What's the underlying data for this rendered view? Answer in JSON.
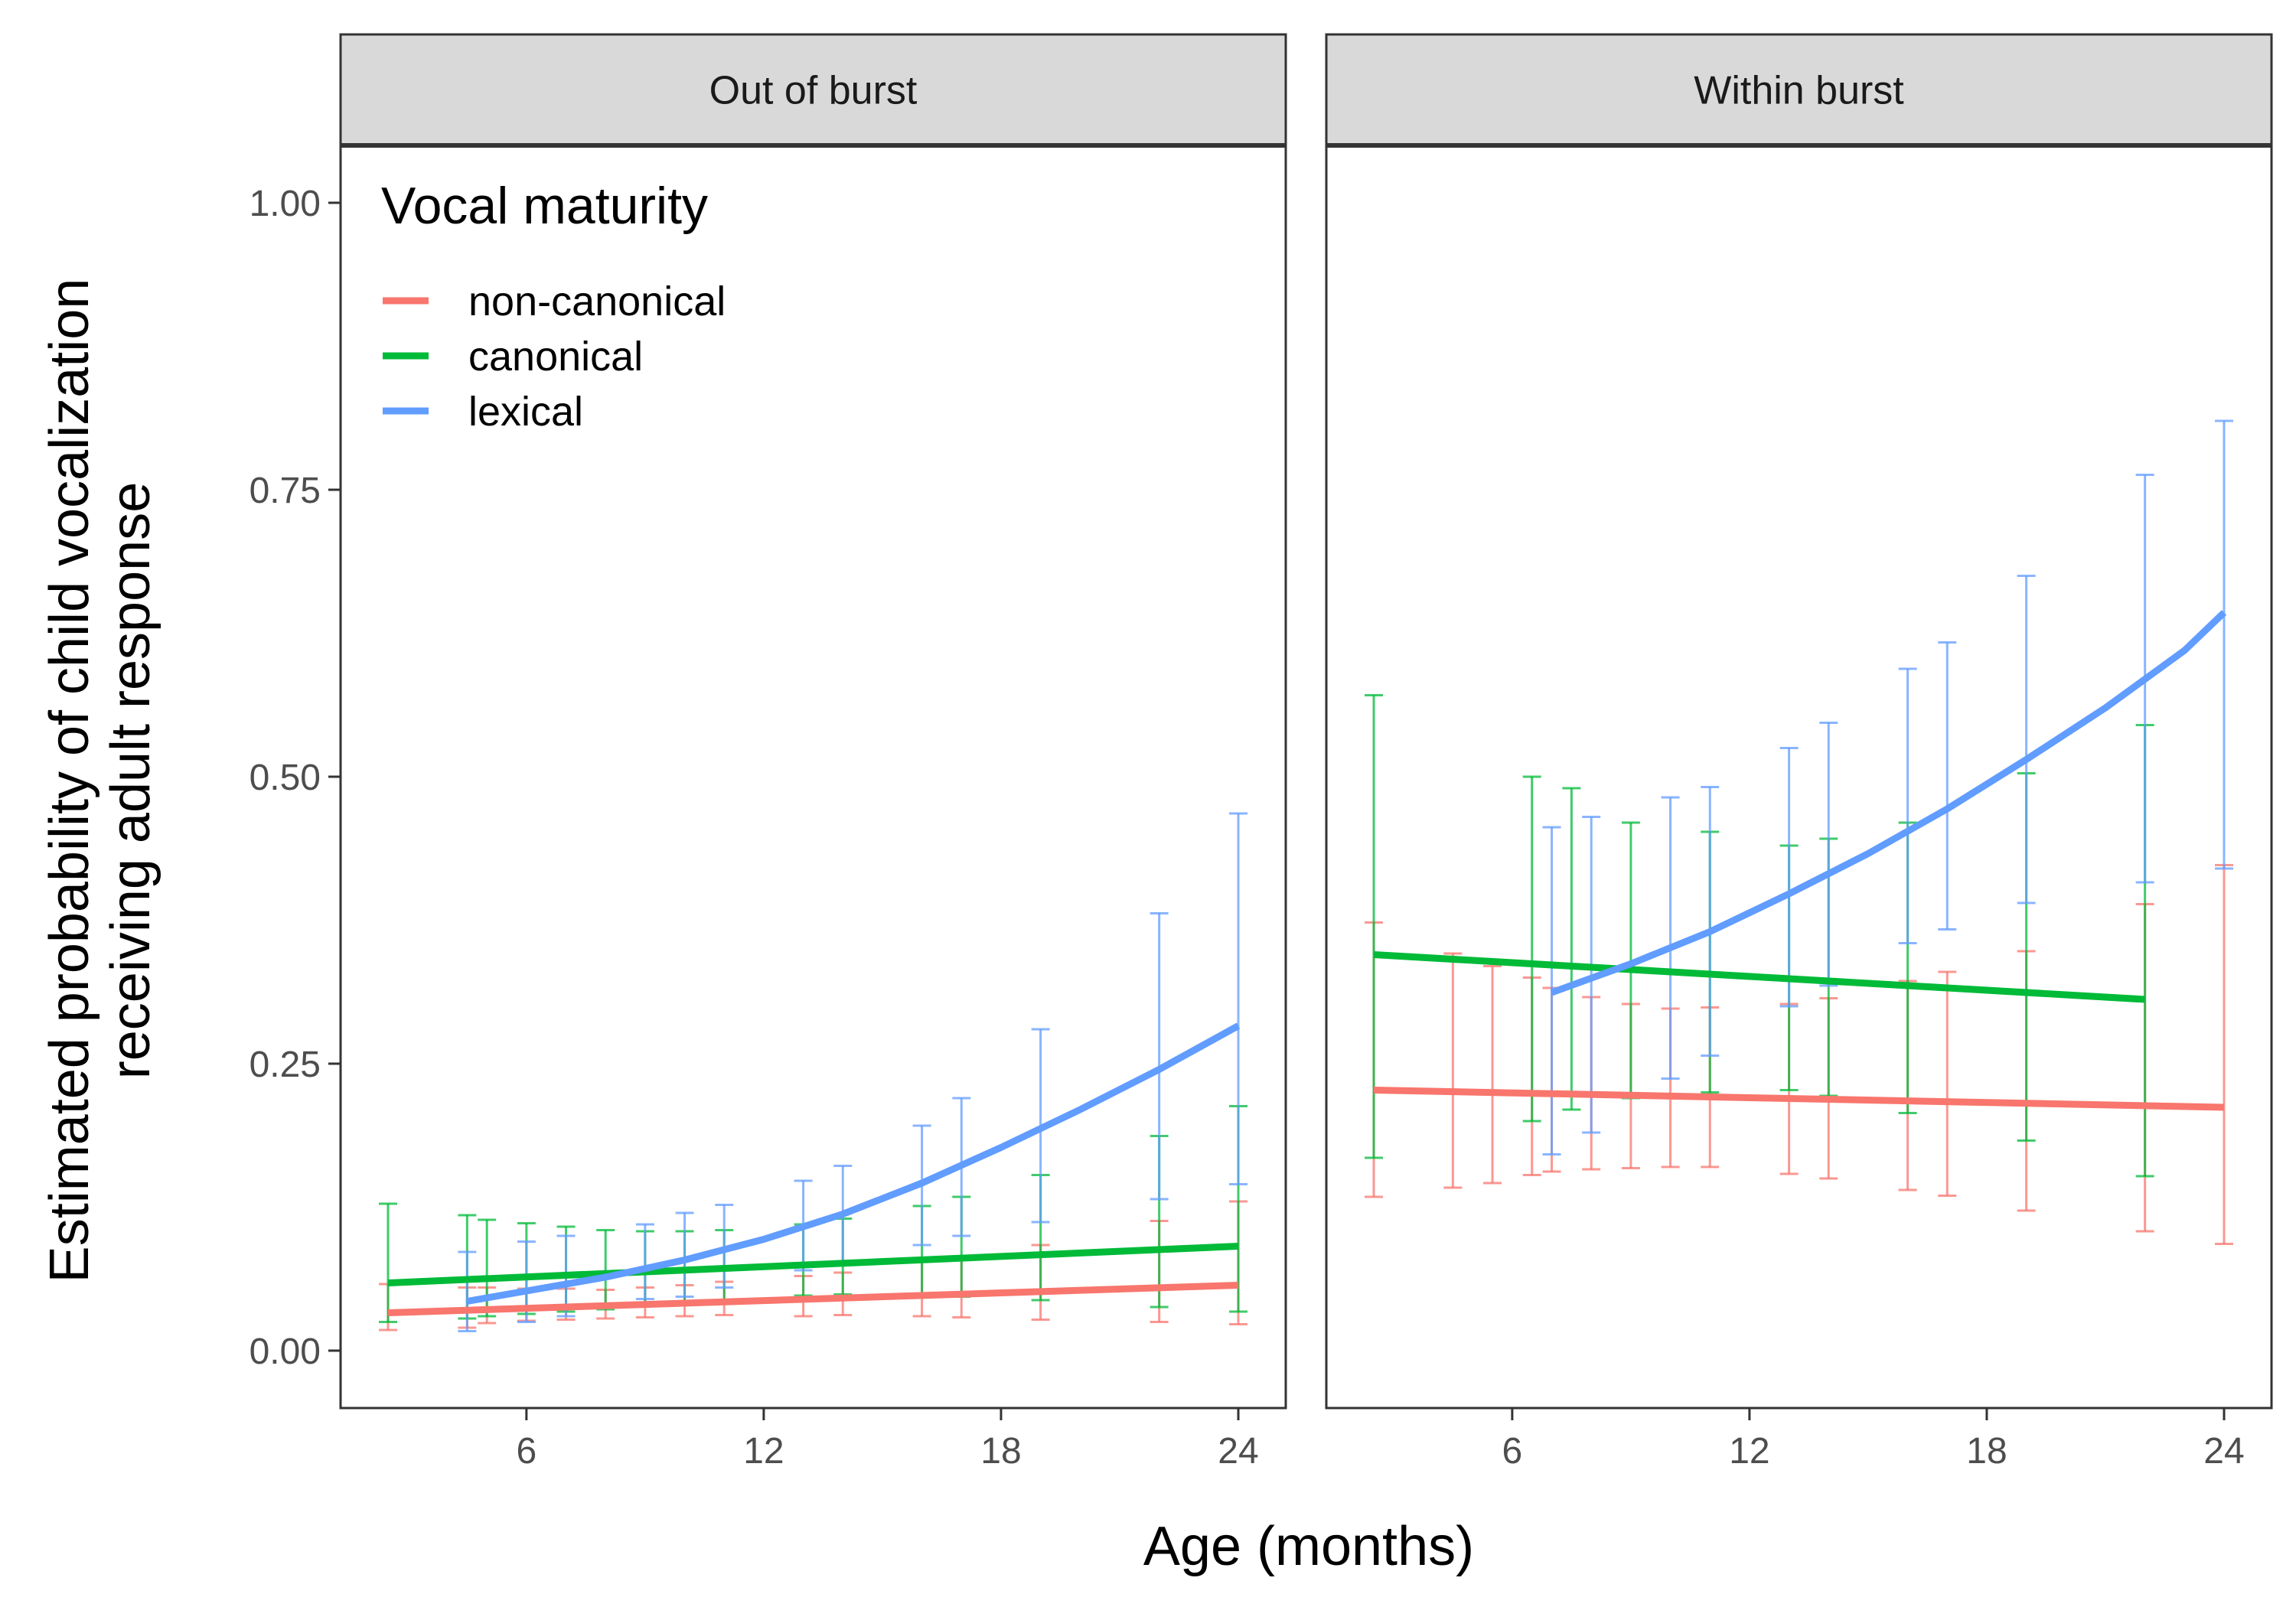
{
  "chart_data": {
    "type": "line",
    "xlabel": "Age (months)",
    "ylabel_lines": [
      "Estimated probability of child vocalization",
      "receiving adult response"
    ],
    "xlim": [
      1.3,
      25.2
    ],
    "ylim": [
      -0.05,
      1.05
    ],
    "x_ticks": [
      6,
      12,
      18,
      24
    ],
    "x_tick_labels": [
      "6",
      "12",
      "18",
      "24"
    ],
    "y_ticks": [
      0,
      0.25,
      0.5,
      0.75,
      1.0
    ],
    "y_tick_labels": [
      "0.00",
      "0.25",
      "0.50",
      "0.75",
      "1.00"
    ],
    "grid": false,
    "legend": {
      "title": "Vocal maturity",
      "placement": "top-left",
      "entries": [
        {
          "label": "non-canonical",
          "color": "#F8766D"
        },
        {
          "label": "canonical",
          "color": "#00BA38"
        },
        {
          "label": "lexical",
          "color": "#619CFF"
        }
      ]
    },
    "panels": [
      {
        "strip": "Out of burst",
        "series": [
          {
            "name": "non-canonical",
            "color": "#F8766D",
            "line": [
              [
                2.5,
                0.033
              ],
              [
                24,
                0.057
              ]
            ],
            "errorbars": [
              {
                "x": 2.5,
                "lo": 0.018,
                "hi": 0.058
              },
              {
                "x": 4.5,
                "lo": 0.02,
                "hi": 0.055
              },
              {
                "x": 5,
                "lo": 0.024,
                "hi": 0.055
              },
              {
                "x": 6,
                "lo": 0.026,
                "hi": 0.054
              },
              {
                "x": 7,
                "lo": 0.027,
                "hi": 0.054
              },
              {
                "x": 8,
                "lo": 0.028,
                "hi": 0.053
              },
              {
                "x": 9,
                "lo": 0.029,
                "hi": 0.055
              },
              {
                "x": 10,
                "lo": 0.03,
                "hi": 0.057
              },
              {
                "x": 11,
                "lo": 0.031,
                "hi": 0.06
              },
              {
                "x": 13,
                "lo": 0.03,
                "hi": 0.065
              },
              {
                "x": 14,
                "lo": 0.031,
                "hi": 0.068
              },
              {
                "x": 16,
                "lo": 0.03,
                "hi": 0.078
              },
              {
                "x": 17,
                "lo": 0.029,
                "hi": 0.082
              },
              {
                "x": 19,
                "lo": 0.027,
                "hi": 0.092
              },
              {
                "x": 22,
                "lo": 0.025,
                "hi": 0.113
              },
              {
                "x": 24,
                "lo": 0.023,
                "hi": 0.13
              }
            ]
          },
          {
            "name": "canonical",
            "color": "#00BA38",
            "line": [
              [
                2.5,
                0.059
              ],
              [
                24,
                0.091
              ]
            ],
            "errorbars": [
              {
                "x": 2.5,
                "lo": 0.025,
                "hi": 0.128
              },
              {
                "x": 4.5,
                "lo": 0.028,
                "hi": 0.118
              },
              {
                "x": 5,
                "lo": 0.03,
                "hi": 0.114
              },
              {
                "x": 6,
                "lo": 0.032,
                "hi": 0.111
              },
              {
                "x": 7,
                "lo": 0.034,
                "hi": 0.108
              },
              {
                "x": 8,
                "lo": 0.036,
                "hi": 0.105
              },
              {
                "x": 9,
                "lo": 0.039,
                "hi": 0.104
              },
              {
                "x": 10,
                "lo": 0.042,
                "hi": 0.104
              },
              {
                "x": 11,
                "lo": 0.044,
                "hi": 0.105
              },
              {
                "x": 13,
                "lo": 0.048,
                "hi": 0.11
              },
              {
                "x": 14,
                "lo": 0.049,
                "hi": 0.115
              },
              {
                "x": 16,
                "lo": 0.048,
                "hi": 0.126
              },
              {
                "x": 17,
                "lo": 0.047,
                "hi": 0.134
              },
              {
                "x": 19,
                "lo": 0.044,
                "hi": 0.153
              },
              {
                "x": 22,
                "lo": 0.038,
                "hi": 0.187
              },
              {
                "x": 24,
                "lo": 0.034,
                "hi": 0.213
              }
            ]
          },
          {
            "name": "lexical",
            "color": "#619CFF",
            "line": [
              [
                4.5,
                0.043
              ],
              [
                6,
                0.052
              ],
              [
                8,
                0.064
              ],
              [
                10,
                0.079
              ],
              [
                12,
                0.097
              ],
              [
                14,
                0.119
              ],
              [
                16,
                0.146
              ],
              [
                18,
                0.177
              ],
              [
                20,
                0.21
              ],
              [
                22,
                0.245
              ],
              [
                24,
                0.283
              ]
            ],
            "errorbars": [
              {
                "x": 4.5,
                "lo": 0.017,
                "hi": 0.086
              },
              {
                "x": 6,
                "lo": 0.025,
                "hi": 0.095
              },
              {
                "x": 7,
                "lo": 0.03,
                "hi": 0.1
              },
              {
                "x": 9,
                "lo": 0.045,
                "hi": 0.11
              },
              {
                "x": 10,
                "lo": 0.047,
                "hi": 0.12
              },
              {
                "x": 11,
                "lo": 0.055,
                "hi": 0.127
              },
              {
                "x": 13,
                "lo": 0.07,
                "hi": 0.148
              },
              {
                "x": 14,
                "lo": 0.076,
                "hi": 0.161
              },
              {
                "x": 16,
                "lo": 0.092,
                "hi": 0.196
              },
              {
                "x": 17,
                "lo": 0.1,
                "hi": 0.22
              },
              {
                "x": 19,
                "lo": 0.112,
                "hi": 0.28
              },
              {
                "x": 22,
                "lo": 0.132,
                "hi": 0.381
              },
              {
                "x": 24,
                "lo": 0.145,
                "hi": 0.468
              }
            ]
          }
        ]
      },
      {
        "strip": "Within burst",
        "series": [
          {
            "name": "non-canonical",
            "color": "#F8766D",
            "line": [
              [
                2.5,
                0.227
              ],
              [
                24,
                0.212
              ]
            ],
            "errorbars": [
              {
                "x": 2.5,
                "lo": 0.134,
                "hi": 0.373
              },
              {
                "x": 4.5,
                "lo": 0.142,
                "hi": 0.346
              },
              {
                "x": 5.5,
                "lo": 0.146,
                "hi": 0.335
              },
              {
                "x": 6.5,
                "lo": 0.153,
                "hi": 0.325
              },
              {
                "x": 7,
                "lo": 0.156,
                "hi": 0.316
              },
              {
                "x": 8,
                "lo": 0.158,
                "hi": 0.308
              },
              {
                "x": 9,
                "lo": 0.159,
                "hi": 0.302
              },
              {
                "x": 10,
                "lo": 0.16,
                "hi": 0.298
              },
              {
                "x": 11,
                "lo": 0.16,
                "hi": 0.299
              },
              {
                "x": 13,
                "lo": 0.154,
                "hi": 0.302
              },
              {
                "x": 14,
                "lo": 0.15,
                "hi": 0.307
              },
              {
                "x": 16,
                "lo": 0.14,
                "hi": 0.322
              },
              {
                "x": 17,
                "lo": 0.135,
                "hi": 0.33
              },
              {
                "x": 19,
                "lo": 0.122,
                "hi": 0.348
              },
              {
                "x": 22,
                "lo": 0.104,
                "hi": 0.389
              },
              {
                "x": 24,
                "lo": 0.093,
                "hi": 0.423
              }
            ]
          },
          {
            "name": "canonical",
            "color": "#00BA38",
            "line": [
              [
                2.5,
                0.345
              ],
              [
                22,
                0.306
              ]
            ],
            "errorbars": [
              {
                "x": 2.5,
                "lo": 0.168,
                "hi": 0.571
              },
              {
                "x": 6.5,
                "lo": 0.2,
                "hi": 0.5
              },
              {
                "x": 7.5,
                "lo": 0.21,
                "hi": 0.49
              },
              {
                "x": 9,
                "lo": 0.22,
                "hi": 0.46
              },
              {
                "x": 11,
                "lo": 0.225,
                "hi": 0.452
              },
              {
                "x": 13,
                "lo": 0.227,
                "hi": 0.44
              },
              {
                "x": 14,
                "lo": 0.222,
                "hi": 0.446
              },
              {
                "x": 16,
                "lo": 0.207,
                "hi": 0.46
              },
              {
                "x": 19,
                "lo": 0.183,
                "hi": 0.503
              },
              {
                "x": 22,
                "lo": 0.152,
                "hi": 0.545
              }
            ]
          },
          {
            "name": "lexical",
            "color": "#619CFF",
            "line": [
              [
                7,
                0.312
              ],
              [
                9,
                0.337
              ],
              [
                11,
                0.365
              ],
              [
                13,
                0.398
              ],
              [
                15,
                0.433
              ],
              [
                17,
                0.472
              ],
              [
                19,
                0.515
              ],
              [
                21,
                0.56
              ],
              [
                23,
                0.61
              ],
              [
                24,
                0.643
              ]
            ],
            "errorbars": [
              {
                "x": 7,
                "lo": 0.171,
                "hi": 0.456
              },
              {
                "x": 8,
                "lo": 0.19,
                "hi": 0.465
              },
              {
                "x": 10,
                "lo": 0.237,
                "hi": 0.482
              },
              {
                "x": 11,
                "lo": 0.257,
                "hi": 0.491
              },
              {
                "x": 13,
                "lo": 0.3,
                "hi": 0.525
              },
              {
                "x": 14,
                "lo": 0.318,
                "hi": 0.547
              },
              {
                "x": 16,
                "lo": 0.355,
                "hi": 0.594
              },
              {
                "x": 17,
                "lo": 0.367,
                "hi": 0.617
              },
              {
                "x": 19,
                "lo": 0.39,
                "hi": 0.675
              },
              {
                "x": 22,
                "lo": 0.408,
                "hi": 0.763
              },
              {
                "x": 24,
                "lo": 0.42,
                "hi": 0.81
              }
            ]
          }
        ]
      }
    ]
  }
}
